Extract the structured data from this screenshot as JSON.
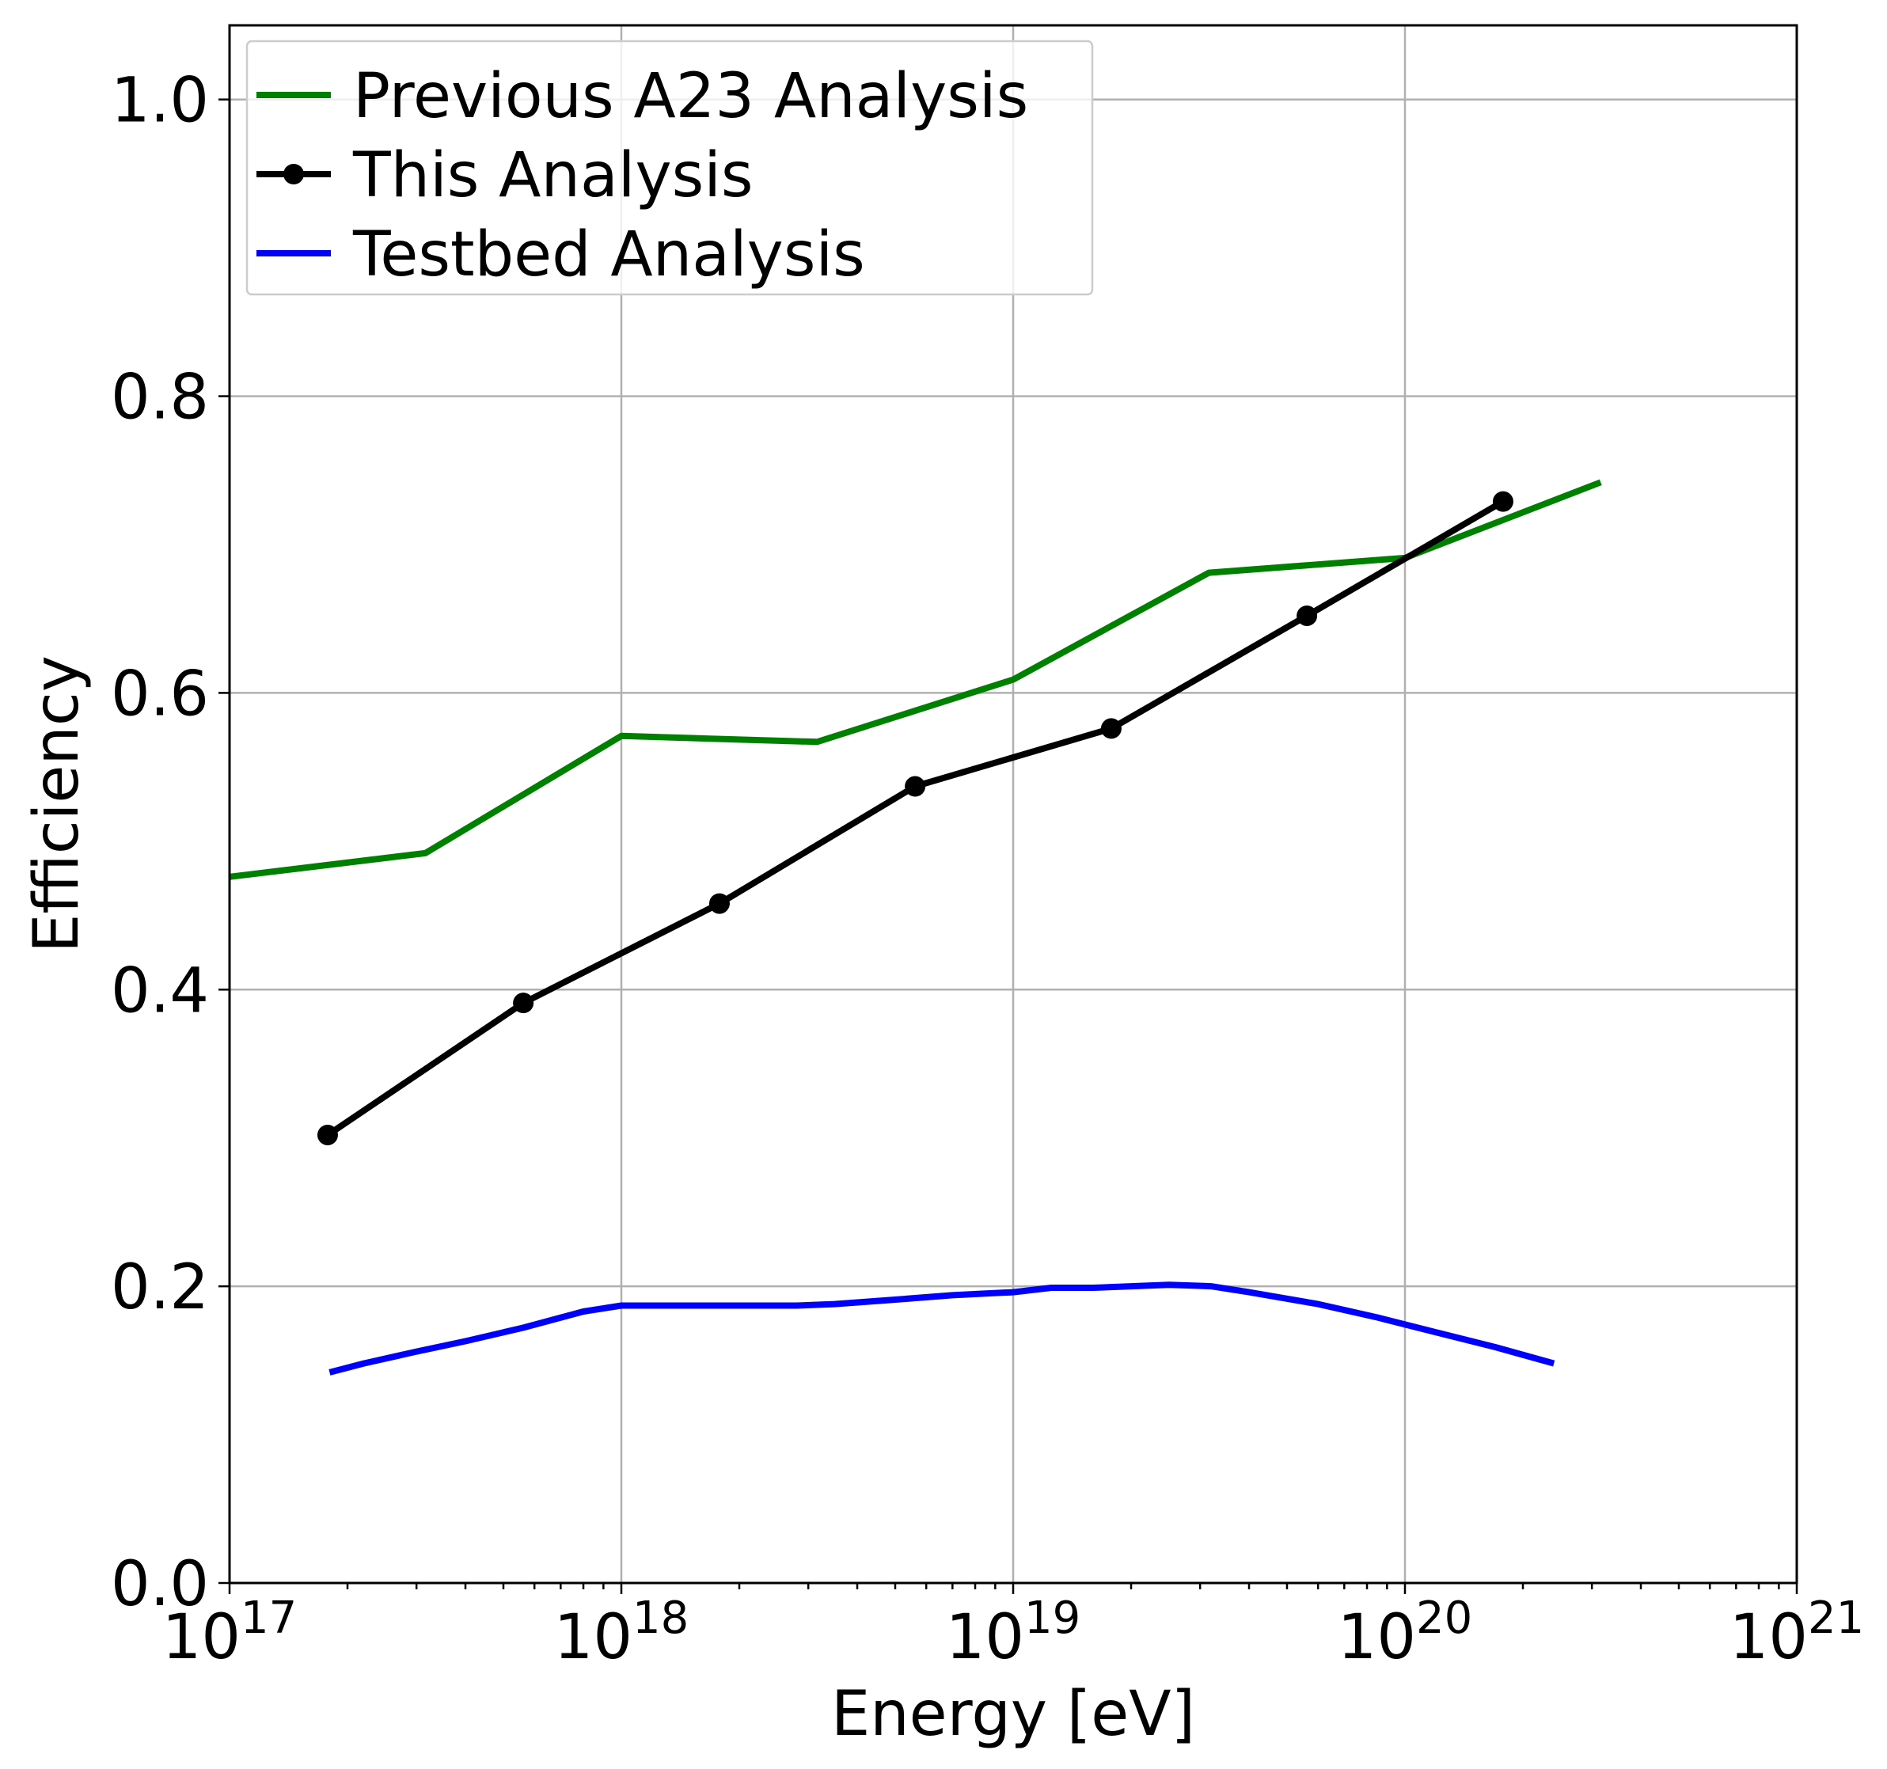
{
  "chart_data": {
    "type": "line",
    "xlabel": "Energy [eV]",
    "ylabel": "Efficiency",
    "xscale": "log",
    "xlim": [
      1e+17,
      1e+21
    ],
    "ylim": [
      0.0,
      1.05
    ],
    "grid": true,
    "legend_position": "top-left",
    "x_ticks": [
      {
        "value": 1e+17,
        "base": "10",
        "exp": "17"
      },
      {
        "value": 1e+18,
        "base": "10",
        "exp": "18"
      },
      {
        "value": 1e+19,
        "base": "10",
        "exp": "19"
      },
      {
        "value": 1e+20,
        "base": "10",
        "exp": "20"
      },
      {
        "value": 1e+21,
        "base": "10",
        "exp": "21"
      }
    ],
    "y_ticks": [
      {
        "value": 0.0,
        "label": "0.0"
      },
      {
        "value": 0.2,
        "label": "0.2"
      },
      {
        "value": 0.4,
        "label": "0.4"
      },
      {
        "value": 0.6,
        "label": "0.6"
      },
      {
        "value": 0.8,
        "label": "0.8"
      },
      {
        "value": 1.0,
        "label": "1.0"
      }
    ],
    "series": [
      {
        "name": "Previous A23 Analysis",
        "color": "#008000",
        "marker": false,
        "x": [
          1e+17,
          3.16e+17,
          1e+18,
          3.16e+18,
          1e+19,
          3.16e+19,
          1e+20,
          3.16e+20
        ],
        "y": [
          0.476,
          0.492,
          0.571,
          0.567,
          0.609,
          0.681,
          0.691,
          0.742
        ]
      },
      {
        "name": "This Analysis",
        "color": "#000000",
        "marker": true,
        "x": [
          1.78e+17,
          5.62e+17,
          1.78e+18,
          5.62e+18,
          1.78e+19,
          5.62e+19,
          1.78e+20
        ],
        "y": [
          0.302,
          0.391,
          0.458,
          0.537,
          0.576,
          0.652,
          0.729
        ]
      },
      {
        "name": "Testbed Analysis",
        "color": "#0000ff",
        "marker": false,
        "x": [
          1.8e+17,
          2.2e+17,
          3e+17,
          4e+17,
          5.6e+17,
          8e+17,
          1e+18,
          1.5e+18,
          2e+18,
          2.8e+18,
          3.5e+18,
          5e+18,
          7e+18,
          1e+19,
          1.25e+19,
          1.6e+19,
          2e+19,
          2.5e+19,
          3.2e+19,
          4e+19,
          6e+19,
          8.5e+19,
          1.2e+20,
          1.7e+20,
          2.4e+20
        ],
        "y": [
          0.142,
          0.148,
          0.156,
          0.163,
          0.172,
          0.183,
          0.187,
          0.187,
          0.187,
          0.187,
          0.188,
          0.191,
          0.194,
          0.196,
          0.199,
          0.199,
          0.2,
          0.201,
          0.2,
          0.196,
          0.188,
          0.179,
          0.169,
          0.159,
          0.148
        ]
      }
    ]
  }
}
